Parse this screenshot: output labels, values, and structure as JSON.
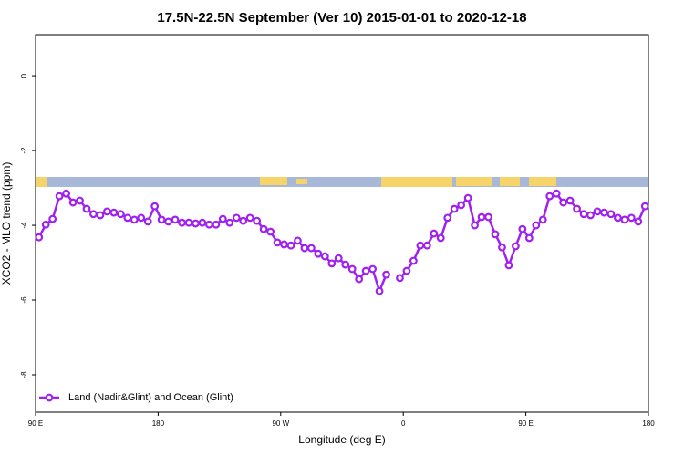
{
  "chart_data": {
    "type": "line",
    "title": "17.5N-22.5N September (Ver 10)   2015-01-01 to 2020-12-18",
    "x_label": "Longitude (deg E)",
    "y_label": "XCO2 - MLO trend (ppm)",
    "x": [
      92.5,
      97.5,
      102.5,
      107.5,
      112.5,
      117.5,
      122.5,
      127.5,
      132.5,
      137.5,
      142.5,
      147.5,
      152.5,
      157.5,
      162.5,
      167.5,
      172.5,
      177.5,
      182.5,
      187.5,
      192.5,
      197.5,
      202.5,
      207.5,
      212.5,
      217.5,
      222.5,
      227.5,
      232.5,
      237.5,
      242.5,
      247.5,
      252.5,
      257.5,
      262.5,
      267.5,
      272.5,
      277.5,
      282.5,
      287.5,
      292.5,
      297.5,
      302.5,
      307.5,
      312.5,
      317.5,
      322.5,
      327.5,
      332.5,
      337.5,
      342.5,
      347.5,
      352.5,
      357.5,
      362.5,
      367.5,
      372.5,
      377.5,
      382.5,
      387.5,
      392.5,
      397.5,
      402.5,
      407.5,
      412.5,
      417.5,
      422.5,
      427.5,
      432.5,
      437.5,
      442.5,
      447.5,
      452.5,
      457.5,
      462.5,
      467.5,
      472.5,
      477.5,
      482.5,
      487.5,
      492.5,
      497.5,
      502.5,
      507.5,
      512.5,
      517.5,
      522.5,
      527.5,
      532.5,
      537.5
    ],
    "series": [
      {
        "name": "Land (Nadir&Glint) and Ocean (Glint)",
        "color": "#a020f0",
        "values": [
          -4.32,
          -3.98,
          -3.83,
          -3.22,
          -3.15,
          -3.39,
          -3.34,
          -3.56,
          -3.7,
          -3.73,
          -3.63,
          -3.66,
          -3.7,
          -3.8,
          -3.85,
          -3.8,
          -3.9,
          -3.49,
          -3.85,
          -3.9,
          -3.85,
          -3.93,
          -3.93,
          -3.95,
          -3.93,
          -3.98,
          -3.98,
          -3.83,
          -3.93,
          -3.8,
          -3.88,
          -3.8,
          -3.88,
          -4.1,
          -4.17,
          -4.46,
          -4.51,
          -4.54,
          -4.41,
          -4.61,
          -4.61,
          -4.76,
          -4.83,
          -5.02,
          -4.88,
          -5.05,
          -5.17,
          -5.44,
          -5.22,
          -5.17,
          -5.76,
          -5.32,
          null,
          -5.41,
          -5.22,
          -4.95,
          -4.54,
          -4.54,
          -4.22,
          -4.34,
          -3.8,
          -3.56,
          -3.46,
          -3.27,
          -4.0,
          -3.78,
          -3.78,
          -4.24,
          -4.59,
          -5.07,
          -4.56,
          -4.1,
          -4.34,
          -4.0,
          -3.85,
          -3.22,
          -3.15,
          -3.39,
          -3.34,
          -3.56,
          -3.7,
          -3.73,
          -3.63,
          -3.66,
          -3.7,
          -3.8,
          -3.85,
          -3.8,
          -3.9,
          -3.49
        ]
      }
    ],
    "xlim": [
      90,
      540
    ],
    "xticks": [
      {
        "value": 90,
        "label": "90 E"
      },
      180,
      {
        "value": 270,
        "label": "90 W"
      },
      {
        "value": 360,
        "label": "0"
      },
      {
        "value": 450,
        "label": "90 E"
      },
      {
        "value": 540,
        "label": "180"
      }
    ],
    "ylim": [
      -9,
      1.1
    ],
    "yticks": [
      0,
      -2,
      -4,
      -6,
      -8
    ],
    "legend": "bottom-left"
  }
}
